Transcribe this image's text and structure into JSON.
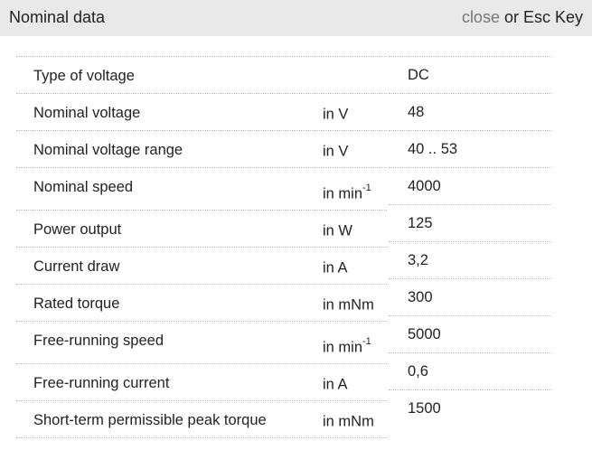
{
  "header": {
    "title": "Nominal data",
    "close_link": "close",
    "close_suffix": " or Esc Key"
  },
  "rows": [
    {
      "label": "Type of voltage",
      "unit": "",
      "unit_sup": "",
      "value": "DC"
    },
    {
      "label": "Nominal voltage",
      "unit": "in V",
      "unit_sup": "",
      "value": "48"
    },
    {
      "label": "Nominal voltage range",
      "unit": "in V",
      "unit_sup": "",
      "value": "40 .. 53"
    },
    {
      "label": "Nominal speed",
      "unit": "in min",
      "unit_sup": "-1",
      "value": "4000"
    },
    {
      "label": "Power output",
      "unit": "in W",
      "unit_sup": "",
      "value": "125"
    },
    {
      "label": "Current draw",
      "unit": "in A",
      "unit_sup": "",
      "value": "3,2"
    },
    {
      "label": "Rated torque",
      "unit": "in mNm",
      "unit_sup": "",
      "value": "300"
    },
    {
      "label": "Free-running speed",
      "unit": "in min",
      "unit_sup": "-1",
      "value": "5000"
    },
    {
      "label": "Free-running current",
      "unit": "in A",
      "unit_sup": "",
      "value": "0,6"
    },
    {
      "label": "Short-term permissible peak torque",
      "unit": "in mNm",
      "unit_sup": "",
      "value": "1500"
    }
  ]
}
